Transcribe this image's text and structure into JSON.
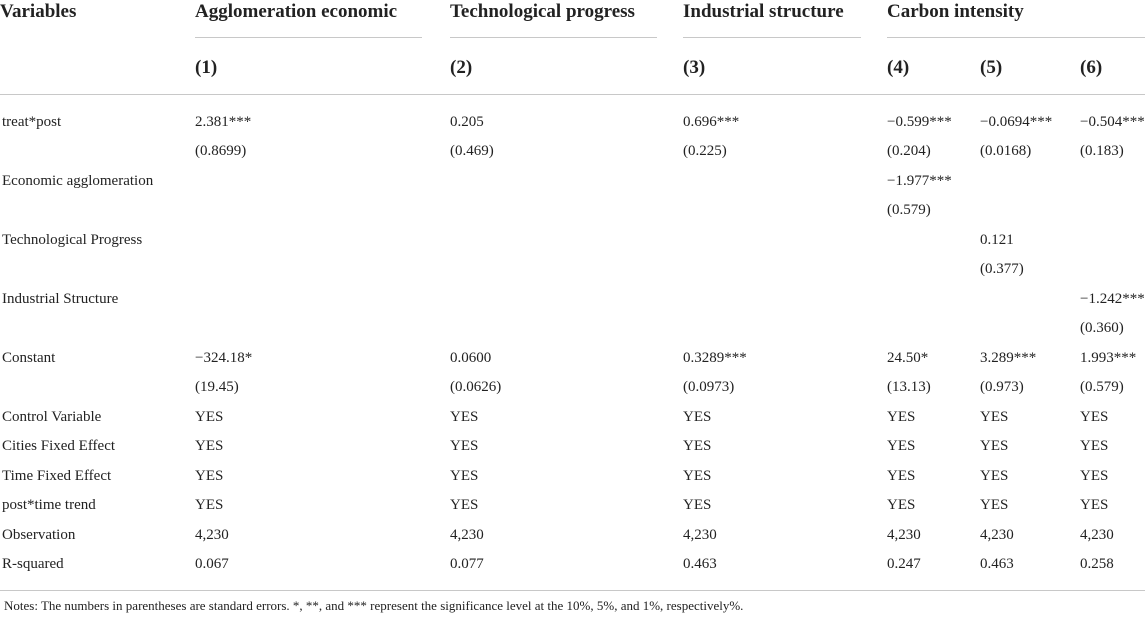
{
  "header": {
    "variables": "Variables",
    "groups": [
      "Agglomeration economic",
      "Technological progress",
      "Industrial structure",
      "Carbon intensity"
    ],
    "model_numbers": [
      "(1)",
      "(2)",
      "(3)",
      "(4)",
      "(5)",
      "(6)"
    ]
  },
  "rows": [
    {
      "label": "treat*post",
      "cells": [
        "2.381***",
        "0.205",
        "0.696***",
        "−0.599***",
        "−0.0694***",
        "−0.504***"
      ]
    },
    {
      "label": "",
      "cells": [
        "(0.8699)",
        "(0.469)",
        "(0.225)",
        "(0.204)",
        "(0.0168)",
        "(0.183)"
      ]
    },
    {
      "label": "Economic agglomeration",
      "cells": [
        "",
        "",
        "",
        "−1.977***",
        "",
        ""
      ]
    },
    {
      "label": "",
      "cells": [
        "",
        "",
        "",
        "(0.579)",
        "",
        ""
      ]
    },
    {
      "label": "Technological Progress",
      "cells": [
        "",
        "",
        "",
        "",
        "0.121",
        ""
      ]
    },
    {
      "label": "",
      "cells": [
        "",
        "",
        "",
        "",
        "(0.377)",
        ""
      ]
    },
    {
      "label": "Industrial Structure",
      "cells": [
        "",
        "",
        "",
        "",
        "",
        "−1.242***"
      ]
    },
    {
      "label": "",
      "cells": [
        "",
        "",
        "",
        "",
        "",
        "(0.360)"
      ]
    },
    {
      "label": "Constant",
      "cells": [
        "−324.18*",
        "0.0600",
        "0.3289***",
        "24.50*",
        "3.289***",
        "1.993***"
      ]
    },
    {
      "label": "",
      "cells": [
        "(19.45)",
        "(0.0626)",
        "(0.0973)",
        "(13.13)",
        "(0.973)",
        "(0.579)"
      ]
    },
    {
      "label": "Control Variable",
      "cells": [
        "YES",
        "YES",
        "YES",
        "YES",
        "YES",
        "YES"
      ]
    },
    {
      "label": "Cities Fixed Effect",
      "cells": [
        "YES",
        "YES",
        "YES",
        "YES",
        "YES",
        "YES"
      ]
    },
    {
      "label": "Time Fixed Effect",
      "cells": [
        "YES",
        "YES",
        "YES",
        "YES",
        "YES",
        "YES"
      ]
    },
    {
      "label": "post*time trend",
      "cells": [
        "YES",
        "YES",
        "YES",
        "YES",
        "YES",
        "YES"
      ]
    },
    {
      "label": "Observation",
      "cells": [
        "4,230",
        "4,230",
        "4,230",
        "4,230",
        "4,230",
        "4,230"
      ]
    },
    {
      "label": "R-squared",
      "cells": [
        "0.067",
        "0.077",
        "0.463",
        "0.247",
        "0.463",
        "0.258"
      ]
    }
  ],
  "notes": "Notes: The numbers in parentheses are standard errors. *, **, and *** represent the significance level at the 10%, 5%, and 1%, respectively%."
}
